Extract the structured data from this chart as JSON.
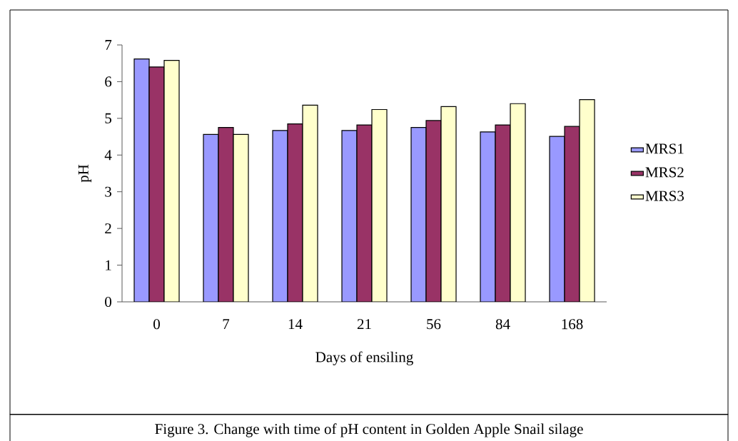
{
  "chart_data": {
    "type": "bar",
    "categories": [
      "0",
      "7",
      "14",
      "21",
      "56",
      "84",
      "168"
    ],
    "xlabel": "Days of ensiling",
    "ylabel": "pH",
    "series": [
      {
        "name": "MRS1",
        "color": "#9999ff",
        "values": [
          6.62,
          4.56,
          4.67,
          4.67,
          4.75,
          4.63,
          4.51
        ]
      },
      {
        "name": "MRS2",
        "color": "#993366",
        "values": [
          6.4,
          4.75,
          4.85,
          4.82,
          4.94,
          4.82,
          4.78
        ]
      },
      {
        "name": "MRS3",
        "color": "#ffffcc",
        "values": [
          6.58,
          4.56,
          5.36,
          5.24,
          5.32,
          5.4,
          5.51
        ]
      }
    ],
    "ylim": [
      0,
      7
    ],
    "yticks": [
      0,
      1,
      2,
      3,
      4,
      5,
      6,
      7
    ],
    "legend": "right",
    "annotations": [
      "Figure 3. Change with time of pH content in Golden Apple Snail silage"
    ]
  }
}
